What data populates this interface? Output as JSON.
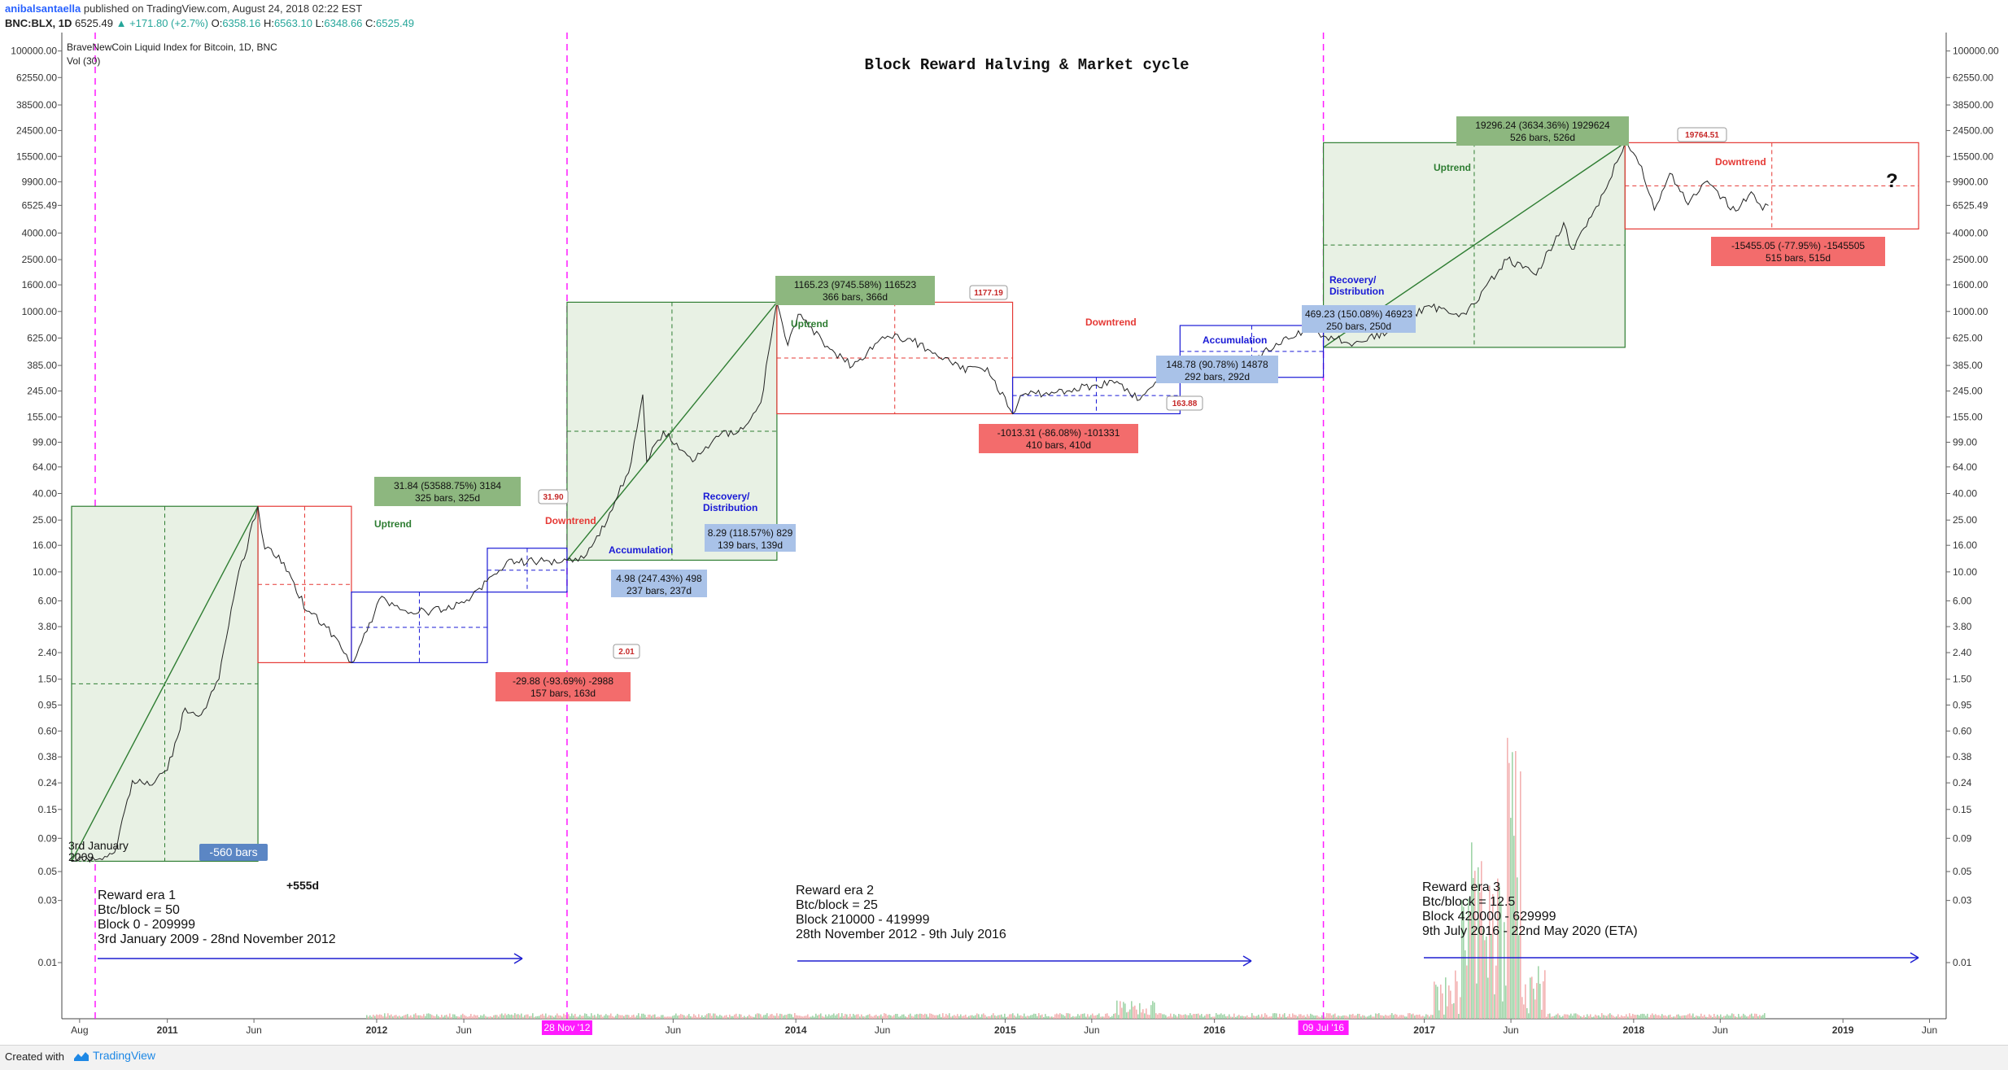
{
  "header": {
    "user": "anibalsantaella",
    "published": "published on TradingView.com, August 24, 2018 02:22 EST",
    "symbol": "BNC:BLX, 1D",
    "last": "6525.49",
    "change": "+171.80 (+2.7%)",
    "open_label": "O:",
    "open": "6358.16",
    "high_label": "H:",
    "high": "6563.10",
    "low_label": "L:",
    "low": "6348.66",
    "close_label": "C:",
    "close": "6525.49"
  },
  "legend": {
    "title": "BraveNewCoin Liquid Index for Bitcoin, 1D, BNC",
    "volume": "Vol (30)"
  },
  "chart_title": "Block Reward Halving & Market cycle",
  "footer": {
    "created": "Created with",
    "brand": "TradingView"
  },
  "colors": {
    "green": "#2e7d32",
    "green_fill": "#e8f1e4",
    "green_box": "#8db77f",
    "red": "#e53935",
    "red_box": "#f36c6c",
    "blue": "#1a1ad6",
    "blue_box": "#a9c2e8",
    "magenta": "#ff1aff",
    "arrow": "#1f1fd1",
    "price": "#222222",
    "volume_up": "#9fd4a8",
    "volume_down": "#f3b2b2"
  },
  "chart_data": {
    "type": "line",
    "y_scale": "log",
    "x_range": [
      "2010-07-01",
      "2019-06-30"
    ],
    "y_ticks": [
      "160000.00",
      "100000.00",
      "62550.00",
      "38500.00",
      "24500.00",
      "15500.00",
      "9900.00",
      "6525.49",
      "4000.00",
      "2500.00",
      "1600.00",
      "1000.00",
      "625.00",
      "385.00",
      "245.00",
      "155.00",
      "99.00",
      "64.00",
      "40.00",
      "25.00",
      "16.00",
      "10.00",
      "6.00",
      "3.80",
      "2.40",
      "1.50",
      "0.95",
      "0.60",
      "0.38",
      "0.24",
      "0.15",
      "0.09",
      "0.05",
      "0.03",
      "0.01"
    ],
    "y_tick_values": [
      160000,
      100000,
      62550,
      38500,
      24500,
      15500,
      9900,
      6525.49,
      4000,
      2500,
      1600,
      1000,
      625,
      385,
      245,
      155,
      99,
      64,
      40,
      25,
      16,
      10,
      6,
      3.8,
      2.4,
      1.5,
      0.95,
      0.6,
      0.38,
      0.24,
      0.15,
      0.09,
      0.05,
      0.03,
      0.01
    ],
    "current_price_tick": "6525.49",
    "x_ticks": [
      {
        "label": "Aug",
        "date": "2010-08-01"
      },
      {
        "label": "2011",
        "date": "2011-01-01",
        "bold": true
      },
      {
        "label": "Jun",
        "date": "2011-06-01"
      },
      {
        "label": "2012",
        "date": "2012-01-01",
        "bold": true
      },
      {
        "label": "Jun",
        "date": "2012-06-01"
      },
      {
        "label": "Jun",
        "date": "2013-06-01"
      },
      {
        "label": "2014",
        "date": "2014-01-01",
        "bold": true
      },
      {
        "label": "Jun",
        "date": "2014-06-01"
      },
      {
        "label": "2015",
        "date": "2015-01-01",
        "bold": true
      },
      {
        "label": "Jun",
        "date": "2015-06-01"
      },
      {
        "label": "2016",
        "date": "2016-01-01",
        "bold": true
      },
      {
        "label": "2017",
        "date": "2017-01-01",
        "bold": true
      },
      {
        "label": "Jun",
        "date": "2017-06-01"
      },
      {
        "label": "2018",
        "date": "2018-01-01",
        "bold": true
      },
      {
        "label": "Jun",
        "date": "2018-06-01"
      },
      {
        "label": "2019",
        "date": "2019-01-01",
        "bold": true
      },
      {
        "label": "Jun",
        "date": "2019-06-01"
      }
    ],
    "halving_markers": [
      {
        "label": "28 Nov '12",
        "date": "2012-11-28"
      },
      {
        "label": "09 Jul '16",
        "date": "2016-07-09"
      }
    ],
    "series": [
      {
        "name": "BraveNewCoin Liquid Index for Bitcoin",
        "points": [
          [
            "2010-07-18",
            0.06
          ],
          [
            "2010-08-01",
            0.065
          ],
          [
            "2010-09-01",
            0.062
          ],
          [
            "2010-10-01",
            0.07
          ],
          [
            "2010-11-01",
            0.25
          ],
          [
            "2010-12-01",
            0.23
          ],
          [
            "2011-01-01",
            0.3
          ],
          [
            "2011-02-01",
            0.9
          ],
          [
            "2011-03-01",
            0.8
          ],
          [
            "2011-04-01",
            1.5
          ],
          [
            "2011-05-01",
            8
          ],
          [
            "2011-06-08",
            31.9
          ],
          [
            "2011-06-20",
            15
          ],
          [
            "2011-07-01",
            15
          ],
          [
            "2011-08-01",
            10
          ],
          [
            "2011-09-01",
            5
          ],
          [
            "2011-10-01",
            4
          ],
          [
            "2011-11-18",
            2.01
          ],
          [
            "2011-12-15",
            3.5
          ],
          [
            "2012-01-10",
            6.5
          ],
          [
            "2012-02-01",
            5.5
          ],
          [
            "2012-03-01",
            4.9
          ],
          [
            "2012-05-01",
            5.1
          ],
          [
            "2012-06-15",
            6.5
          ],
          [
            "2012-08-15",
            12
          ],
          [
            "2012-10-01",
            12
          ],
          [
            "2012-11-28",
            12.3
          ],
          [
            "2013-01-01",
            13.5
          ],
          [
            "2013-02-15",
            30
          ],
          [
            "2013-03-20",
            70
          ],
          [
            "2013-04-09",
            230
          ],
          [
            "2013-04-16",
            70
          ],
          [
            "2013-05-15",
            120
          ],
          [
            "2013-07-05",
            70
          ],
          [
            "2013-08-15",
            110
          ],
          [
            "2013-10-01",
            125
          ],
          [
            "2013-11-01",
            200
          ],
          [
            "2013-11-29",
            1177.19
          ],
          [
            "2013-12-18",
            550
          ],
          [
            "2014-01-05",
            950
          ],
          [
            "2014-02-25",
            540
          ],
          [
            "2014-04-10",
            380
          ],
          [
            "2014-06-01",
            640
          ],
          [
            "2014-07-15",
            620
          ],
          [
            "2014-09-01",
            480
          ],
          [
            "2014-10-15",
            360
          ],
          [
            "2014-12-01",
            370
          ],
          [
            "2015-01-14",
            163.88
          ],
          [
            "2015-02-01",
            230
          ],
          [
            "2015-04-01",
            240
          ],
          [
            "2015-07-15",
            290
          ],
          [
            "2015-08-24",
            210
          ],
          [
            "2015-11-04",
            400
          ],
          [
            "2016-01-01",
            430
          ],
          [
            "2016-03-01",
            420
          ],
          [
            "2016-06-17",
            760
          ],
          [
            "2016-07-09",
            650
          ],
          [
            "2016-09-01",
            570
          ],
          [
            "2016-11-01",
            700
          ],
          [
            "2017-01-05",
            1100
          ],
          [
            "2017-03-15",
            950
          ],
          [
            "2017-05-25",
            2500
          ],
          [
            "2017-07-15",
            1900
          ],
          [
            "2017-09-01",
            4800
          ],
          [
            "2017-09-15",
            3000
          ],
          [
            "2017-11-01",
            6500
          ],
          [
            "2017-12-17",
            19764.51
          ],
          [
            "2018-01-15",
            13000
          ],
          [
            "2018-02-06",
            6000
          ],
          [
            "2018-03-05",
            11500
          ],
          [
            "2018-04-06",
            6600
          ],
          [
            "2018-05-05",
            9800
          ],
          [
            "2018-06-28",
            5900
          ],
          [
            "2018-07-25",
            8300
          ],
          [
            "2018-08-14",
            6000
          ],
          [
            "2018-08-24",
            6525.49
          ]
        ]
      }
    ],
    "volume_note": "Vol (30) histogram",
    "annotations": {
      "eras": [
        {
          "name": "Reward era 1",
          "reward": "Btc/block = 50",
          "blocks": "Block 0 - 209999",
          "period": "3rd January 2009 - 28nd November 2012"
        },
        {
          "name": "Reward era 2",
          "reward": "Btc/block = 25",
          "blocks": "Block 210000 - 419999",
          "period": "28th November 2012 - 9th July 2016"
        },
        {
          "name": "Reward era 3",
          "reward": "Btc/block = 12.5",
          "blocks": "Block 420000 - 629999",
          "period": "9th July 2016 - 22nd May 2020 (ETA)"
        }
      ],
      "genesis_label": "3rd January\n2009",
      "bars_label": "-560 bars",
      "days_label": "+555d",
      "phase": {
        "uptrend": "Uptrend",
        "downtrend": "Downtrend",
        "accumulation": "Accumulation",
        "recovery": "Recovery/\nDistribution"
      },
      "price_labels": [
        "31.90",
        "2.01",
        "1177.19",
        "163.88",
        "19764.51"
      ],
      "measures": [
        {
          "text": "31.84 (53588.75%) 3184\n325 bars, 325d"
        },
        {
          "text": "-29.88 (-93.69%) -2988\n157 bars, 163d"
        },
        {
          "text": "4.98 (247.43%) 498\n237 bars, 237d"
        },
        {
          "text": "8.29 (118.57%) 829\n139 bars, 139d"
        },
        {
          "text": "1165.23 (9745.58%) 116523\n366 bars, 366d"
        },
        {
          "text": "-1013.31 (-86.08%) -101331\n410 bars, 410d"
        },
        {
          "text": "148.78 (90.78%) 14878\n292 bars, 292d"
        },
        {
          "text": "469.23 (150.08%) 46923\n250 bars, 250d"
        },
        {
          "text": "19296.24 (3634.36%) 1929624\n526 bars, 526d"
        },
        {
          "text": "-15455.05 (-77.95%) -1545505\n515 bars, 515d"
        }
      ],
      "question": "?"
    }
  }
}
